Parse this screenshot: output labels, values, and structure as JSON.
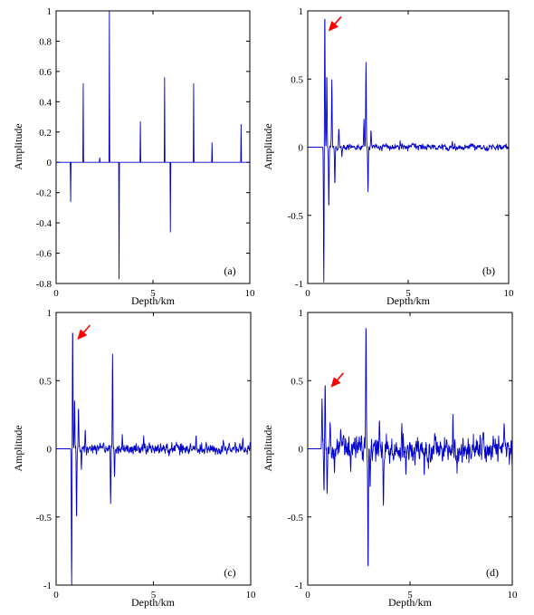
{
  "chart_data": [
    {
      "type": "line",
      "panel_label": "(a)",
      "xlabel": "Depth/km",
      "ylabel": "Amplitude",
      "xlim": [
        0,
        10
      ],
      "ylim": [
        -0.8,
        1
      ],
      "xticks": [
        0,
        5,
        10
      ],
      "yticks": [
        -0.8,
        -0.6,
        -0.4,
        -0.2,
        0,
        0.2,
        0.4,
        0.6,
        0.8,
        1
      ],
      "grid": false,
      "color": "#0000cc",
      "spikes": [
        {
          "x": 0.75,
          "y": -0.26
        },
        {
          "x": 1.4,
          "y": 0.52
        },
        {
          "x": 2.25,
          "y": 0.03
        },
        {
          "x": 2.75,
          "y": 1.0
        },
        {
          "x": 3.25,
          "y": -0.77
        },
        {
          "x": 4.35,
          "y": 0.27
        },
        {
          "x": 5.6,
          "y": 0.56
        },
        {
          "x": 5.9,
          "y": -0.46
        },
        {
          "x": 7.1,
          "y": 0.52
        },
        {
          "x": 8.05,
          "y": 0.13
        },
        {
          "x": 9.55,
          "y": 0.25
        }
      ]
    },
    {
      "type": "line",
      "panel_label": "(b)",
      "xlabel": "Depth/km",
      "ylabel": "Amplitude",
      "xlim": [
        0,
        10
      ],
      "ylim": [
        -1,
        1
      ],
      "xticks": [
        0,
        5,
        10
      ],
      "yticks": [
        -1,
        -0.5,
        0,
        0.5,
        1
      ],
      "grid": false,
      "color": "#0000cc",
      "onset_x": 0.75,
      "arrow_at": {
        "x": 0.85,
        "y": 0.85
      },
      "events": [
        {
          "x": 0.8,
          "y": -1.0
        },
        {
          "x": 0.85,
          "y": 1.0
        },
        {
          "x": 0.95,
          "y": 0.55
        },
        {
          "x": 1.05,
          "y": -0.45
        },
        {
          "x": 1.2,
          "y": 0.5
        },
        {
          "x": 1.35,
          "y": -0.3
        },
        {
          "x": 1.55,
          "y": 0.14
        },
        {
          "x": 1.7,
          "y": -0.08
        },
        {
          "x": 2.8,
          "y": 0.2
        },
        {
          "x": 2.9,
          "y": 0.62
        },
        {
          "x": 3.0,
          "y": -0.33
        },
        {
          "x": 3.15,
          "y": 0.1
        },
        {
          "x": 4.6,
          "y": 0.04
        },
        {
          "x": 5.9,
          "y": -0.03
        },
        {
          "x": 7.2,
          "y": 0.04
        },
        {
          "x": 8.3,
          "y": 0.02
        },
        {
          "x": 9.6,
          "y": 0.02
        }
      ],
      "noise_amplitude": 0.015
    },
    {
      "type": "line",
      "panel_label": "(c)",
      "xlabel": "Depth/km",
      "ylabel": "Amplitude",
      "xlim": [
        0,
        10
      ],
      "ylim": [
        -1,
        1
      ],
      "xticks": [
        0,
        5,
        10
      ],
      "yticks": [
        -1,
        -0.5,
        0,
        0.5,
        1
      ],
      "grid": false,
      "color": "#0000cc",
      "onset_x": 0.75,
      "arrow_at": {
        "x": 0.9,
        "y": 0.8
      },
      "events": [
        {
          "x": 0.8,
          "y": -1.0
        },
        {
          "x": 0.85,
          "y": 0.93
        },
        {
          "x": 0.95,
          "y": 0.35
        },
        {
          "x": 1.05,
          "y": -0.5
        },
        {
          "x": 1.15,
          "y": 0.3
        },
        {
          "x": 1.3,
          "y": -0.15
        },
        {
          "x": 1.5,
          "y": 0.12
        },
        {
          "x": 2.8,
          "y": -0.37
        },
        {
          "x": 2.9,
          "y": 0.7
        },
        {
          "x": 3.0,
          "y": -0.2
        },
        {
          "x": 3.4,
          "y": 0.07
        },
        {
          "x": 4.5,
          "y": 0.08
        },
        {
          "x": 5.8,
          "y": -0.05
        },
        {
          "x": 7.2,
          "y": 0.1
        },
        {
          "x": 8.6,
          "y": 0.06
        },
        {
          "x": 9.6,
          "y": 0.09
        }
      ],
      "noise_amplitude": 0.025
    },
    {
      "type": "line",
      "panel_label": "(d)",
      "xlabel": "Depth/km",
      "ylabel": "Amplitude",
      "xlim": [
        0,
        10
      ],
      "ylim": [
        -1,
        1
      ],
      "xticks": [
        0,
        5,
        10
      ],
      "yticks": [
        -1,
        -0.5,
        0,
        0.5,
        1
      ],
      "grid": false,
      "color": "#0000cc",
      "onset_x": 0.65,
      "arrow_at": {
        "x": 0.95,
        "y": 0.45
      },
      "events": [
        {
          "x": 0.7,
          "y": 0.32
        },
        {
          "x": 0.8,
          "y": -0.33
        },
        {
          "x": 0.85,
          "y": 0.45
        },
        {
          "x": 0.95,
          "y": -0.3
        },
        {
          "x": 1.1,
          "y": 0.2
        },
        {
          "x": 1.3,
          "y": -0.15
        },
        {
          "x": 1.6,
          "y": 0.12
        },
        {
          "x": 2.1,
          "y": -0.1
        },
        {
          "x": 2.85,
          "y": 1.0
        },
        {
          "x": 2.95,
          "y": -0.92
        },
        {
          "x": 3.05,
          "y": -0.3
        },
        {
          "x": 3.5,
          "y": 0.22
        },
        {
          "x": 3.7,
          "y": -0.4
        },
        {
          "x": 4.6,
          "y": 0.2
        },
        {
          "x": 4.8,
          "y": -0.17
        },
        {
          "x": 5.7,
          "y": -0.22
        },
        {
          "x": 5.9,
          "y": -0.18
        },
        {
          "x": 7.1,
          "y": 0.18
        },
        {
          "x": 7.3,
          "y": -0.13
        },
        {
          "x": 8.1,
          "y": 0.09
        },
        {
          "x": 9.6,
          "y": 0.13
        }
      ],
      "noise_amplitude": 0.06
    }
  ]
}
